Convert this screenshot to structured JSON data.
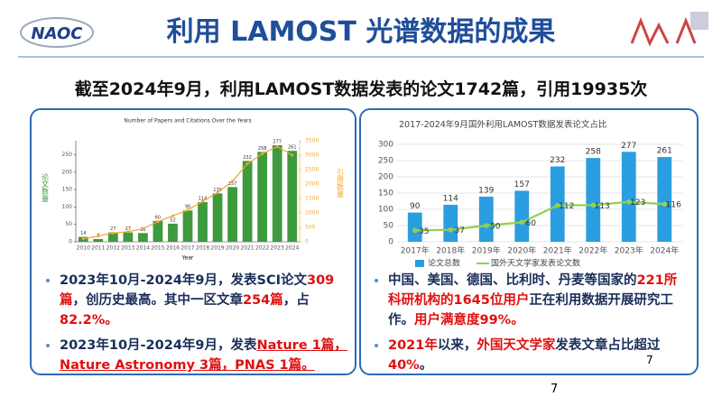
{
  "header": {
    "title": "利用 LAMOST 光谱数据的成果",
    "logo": "NAOC"
  },
  "subtitle": "截至2024年9月，利用LAMOST数据发表的论文1742篇，引用19935次",
  "chart_data": [
    {
      "type": "bar",
      "title": "Number of Papers and Citations Over the Years",
      "x_label": "Year",
      "y_label": "论文数量",
      "y2_label": "引用数量",
      "categories": [
        "2010",
        "2011",
        "2012",
        "2013",
        "2014",
        "2015",
        "2016",
        "2017",
        "2018",
        "2019",
        "2020",
        "2021",
        "2022",
        "2023",
        "2024"
      ],
      "series": [
        {
          "type": "bar",
          "color": "#3d9a3d",
          "data_labels": true,
          "values": [
            14,
            8,
            27,
            27,
            25,
            60,
            52,
            90,
            114,
            139,
            157,
            232,
            258,
            277,
            261
          ]
        },
        {
          "type": "line",
          "axis": "y2",
          "color": "#f0a830",
          "data_labels": false,
          "values": [
            100,
            200,
            300,
            350,
            450,
            700,
            900,
            1100,
            1400,
            1700,
            2100,
            2700,
            3050,
            3300,
            3000
          ]
        }
      ],
      "ylim": [
        0,
        290
      ],
      "yticks": [
        0,
        50,
        100,
        150,
        200,
        250
      ],
      "y2lim": [
        0,
        3500
      ],
      "y2ticks": [
        0,
        500,
        1000,
        1500,
        2000,
        2500,
        3000,
        3500
      ],
      "grid": false
    },
    {
      "type": "bar",
      "title": "2017-2024年9月国外利用LAMOST数据发表论文占比",
      "categories": [
        "2017年",
        "2018年",
        "2019年",
        "2020年",
        "2021年",
        "2022年",
        "2023年",
        "2024年"
      ],
      "series": [
        {
          "name": "论文总数",
          "type": "bar",
          "color": "#2a9ee0",
          "data_labels": true,
          "values": [
            90,
            114,
            139,
            157,
            232,
            258,
            277,
            261
          ]
        },
        {
          "name": "国外天文学家发表论文数",
          "type": "line",
          "color": "#92d050",
          "data_labels": true,
          "values": [
            35,
            37,
            50,
            60,
            112,
            113,
            123,
            116
          ]
        }
      ],
      "ylim": [
        0,
        300
      ],
      "yticks": [
        0,
        50,
        100,
        150,
        200,
        250,
        300
      ],
      "grid": true,
      "legend": "bottom"
    }
  ],
  "left_bullets": [
    [
      {
        "text": "2023年10月-2024年9月，发表SCI论文"
      },
      {
        "text": "309篇",
        "red": true
      },
      {
        "text": "，创历史最高。其中一区文章"
      },
      {
        "text": "254篇",
        "red": true
      },
      {
        "text": "，占"
      },
      {
        "text": "82.2%。",
        "red": true
      }
    ],
    [
      {
        "text": "2023年10月-2024年9月，发表"
      },
      {
        "text": "Nature 1篇，Nature Astronomy 3篇，PNAS 1篇。",
        "red": true,
        "underline": true
      }
    ]
  ],
  "right_bullets": [
    [
      {
        "text": "中国、美国、德国、比利时、丹麦等国家的"
      },
      {
        "text": "221所科研机构的1645位用户",
        "red": true
      },
      {
        "text": "正在利用数据开展研究工作。"
      },
      {
        "text": "用户满意度99%。",
        "red": true
      }
    ],
    [
      {
        "text": "2021年",
        "red": true
      },
      {
        "text": "以来，"
      },
      {
        "text": "外国天文学家",
        "red": true
      },
      {
        "text": "发表文章占比超过"
      },
      {
        "text": "40%",
        "red": true
      },
      {
        "text": "。"
      }
    ]
  ],
  "box_number": "7",
  "page_number": "7"
}
